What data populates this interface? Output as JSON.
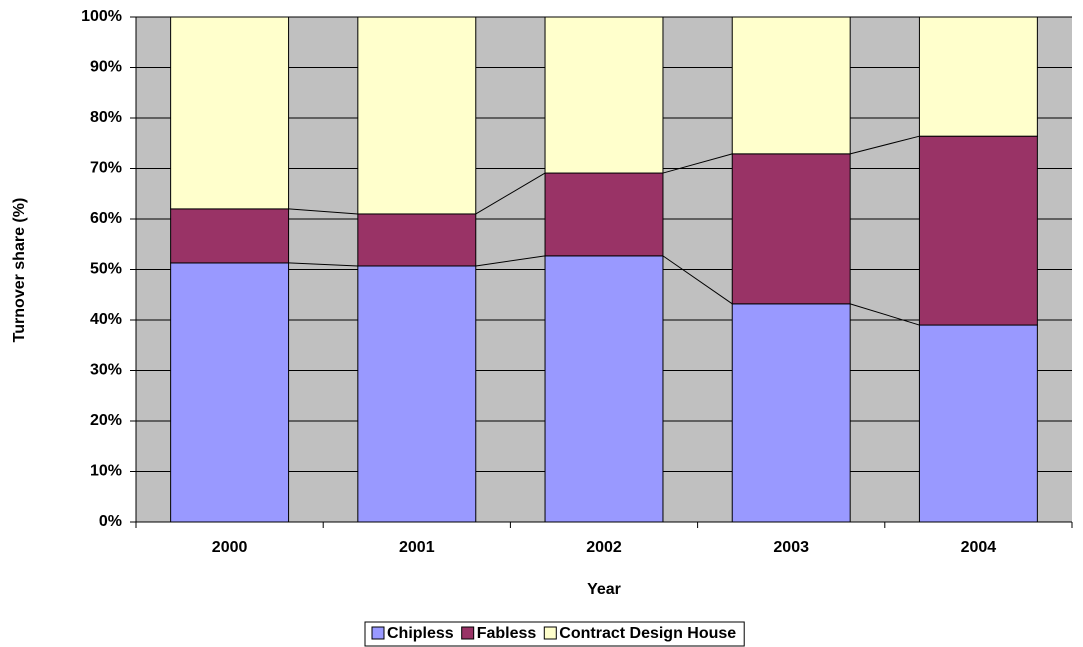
{
  "chart_data": {
    "type": "bar",
    "stacked": true,
    "x_label": "Year",
    "y_label": "Turnover share (%)",
    "categories": [
      "2000",
      "2001",
      "2002",
      "2003",
      "2004"
    ],
    "series": [
      {
        "name": "Chipless",
        "color": "#9999ff",
        "values": [
          51.3,
          50.7,
          52.7,
          43.2,
          39.0
        ]
      },
      {
        "name": "Fabless",
        "color": "#993366",
        "values": [
          10.7,
          10.3,
          16.4,
          29.7,
          37.4
        ]
      },
      {
        "name": "Contract Design House",
        "color": "#ffffcc",
        "values": [
          38.0,
          39.0,
          30.9,
          27.1,
          23.6
        ]
      }
    ],
    "ylim": [
      0,
      100
    ],
    "yticks": [
      {
        "value": 0,
        "label": "0%"
      },
      {
        "value": 10,
        "label": "10%"
      },
      {
        "value": 20,
        "label": "20%"
      },
      {
        "value": 30,
        "label": "30%"
      },
      {
        "value": 40,
        "label": "40%"
      },
      {
        "value": 50,
        "label": "50%"
      },
      {
        "value": 60,
        "label": "60%"
      },
      {
        "value": 70,
        "label": "70%"
      },
      {
        "value": 80,
        "label": "80%"
      },
      {
        "value": 90,
        "label": "90%"
      },
      {
        "value": 100,
        "label": "100%"
      }
    ],
    "grid": true,
    "plot_background": "#c0c0c0",
    "legend": "bottom"
  }
}
